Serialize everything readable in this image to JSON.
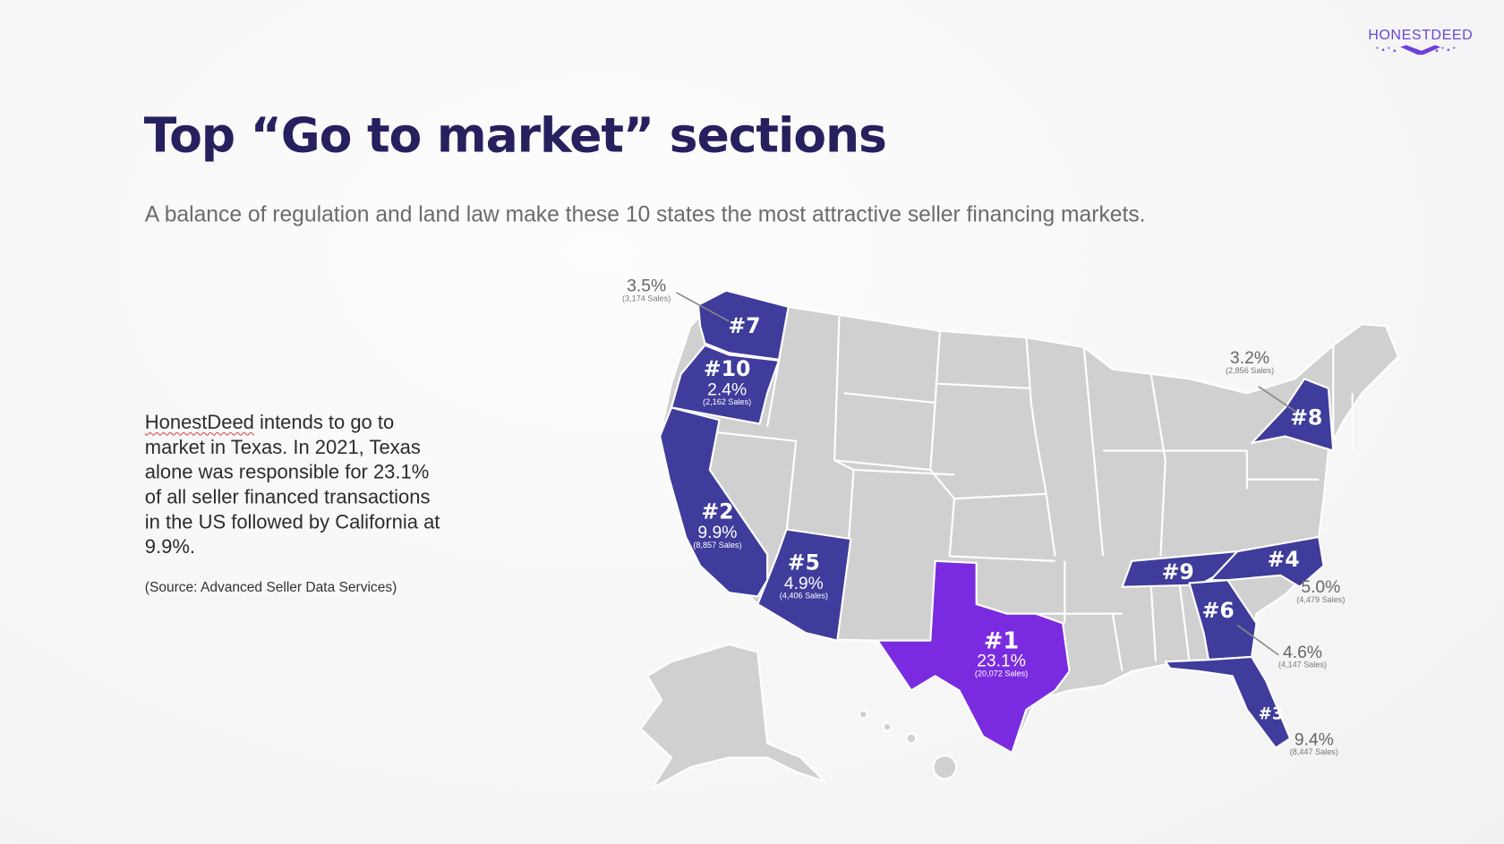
{
  "logo": {
    "text": "HONESTDEED"
  },
  "title": "Top “Go to market” sections",
  "subtitle": "A balance of regulation and land law make these 10 states the most attractive seller financing markets.",
  "body": {
    "brand": "HonestDeed",
    "text": " intends to go to market in Texas. In 2021, Texas alone was responsible for 23.1% of all seller financed transactions in the US followed by California at 9.9%."
  },
  "source": "(Source: Advanced Seller Data Services)",
  "colors": {
    "rank1": "#7a2be0",
    "ranked": "#3f3c9c",
    "other": "#d0d0d0",
    "title": "#27205e"
  },
  "chart_data": {
    "type": "choropleth-map",
    "title": "Top “Go to market” sections",
    "states": [
      {
        "rank": "#1",
        "pct": "23.1%",
        "sales": "(20,072 Sales)",
        "value": 23.1
      },
      {
        "rank": "#2",
        "pct": "9.9%",
        "sales": "(8,857 Sales)",
        "value": 9.9
      },
      {
        "rank": "#3",
        "pct": "9.4%",
        "sales": "(8,447 Sales)",
        "value": 9.4
      },
      {
        "rank": "#4",
        "pct": "5.0%",
        "sales": "(4,479 Sales)",
        "value": 5.0
      },
      {
        "rank": "#5",
        "pct": "4.9%",
        "sales": "(4,406 Sales)",
        "value": 4.9
      },
      {
        "rank": "#6",
        "pct": "4.6%",
        "sales": "(4,147 Sales)",
        "value": 4.6
      },
      {
        "rank": "#7",
        "pct": "3.5%",
        "sales": "(3,174 Sales)",
        "value": 3.5
      },
      {
        "rank": "#8",
        "pct": "3.2%",
        "sales": "(2,856 Sales)",
        "value": 3.2
      },
      {
        "rank": "#9"
      },
      {
        "rank": "#10",
        "pct": "2.4%",
        "sales": "(2,162 Sales)",
        "value": 2.4
      }
    ]
  }
}
